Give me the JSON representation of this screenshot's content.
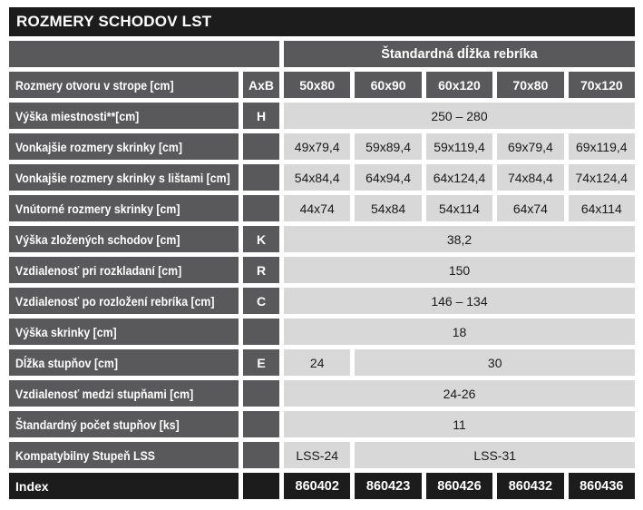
{
  "title": "ROZMERY SCHODOV LST",
  "colors": {
    "dark": "#1c1c1c",
    "gray": "#59595b",
    "light": "#d8d8d8"
  },
  "table": {
    "header": "Štandardná dĺžka rebríka",
    "size_header": {
      "label": "Rozmery otvoru v strope [cm]",
      "code": "AxB",
      "sizes": [
        "50x80",
        "60x90",
        "60x120",
        "70x80",
        "70x120"
      ]
    },
    "rows": [
      {
        "label": "Výška miestnosti**[cm]",
        "code": "H",
        "cells": [
          {
            "text": "250 – 280",
            "span": 5
          }
        ]
      },
      {
        "label": "Vonkajšie rozmery skrinky [cm]",
        "code": "",
        "cells": [
          {
            "text": "49x79,4",
            "span": 1
          },
          {
            "text": "59x89,4",
            "span": 1
          },
          {
            "text": "59x119,4",
            "span": 1
          },
          {
            "text": "69x79,4",
            "span": 1
          },
          {
            "text": "69x119,4",
            "span": 1
          }
        ]
      },
      {
        "label": "Vonkajšie rozmery skrinky s lištami [cm]",
        "code": "",
        "cells": [
          {
            "text": "54x84,4",
            "span": 1
          },
          {
            "text": "64x94,4",
            "span": 1
          },
          {
            "text": "64x124,4",
            "span": 1
          },
          {
            "text": "74x84,4",
            "span": 1
          },
          {
            "text": "74x124,4",
            "span": 1
          }
        ]
      },
      {
        "label": "Vnútorné rozmery skrinky [cm]",
        "code": "",
        "cells": [
          {
            "text": "44x74",
            "span": 1
          },
          {
            "text": "54x84",
            "span": 1
          },
          {
            "text": "54x114",
            "span": 1
          },
          {
            "text": "64x74",
            "span": 1
          },
          {
            "text": "64x114",
            "span": 1
          }
        ]
      },
      {
        "label": "Výška zložených schodov [cm]",
        "code": "K",
        "cells": [
          {
            "text": "38,2",
            "span": 5
          }
        ]
      },
      {
        "label": "Vzdialenosť pri rozkladaní [cm]",
        "code": "R",
        "cells": [
          {
            "text": "150",
            "span": 5
          }
        ]
      },
      {
        "label": "Vzdialenosť po rozložení rebríka [cm]",
        "code": "C",
        "cells": [
          {
            "text": "146 – 134",
            "span": 5
          }
        ]
      },
      {
        "label": "Výška skrinky [cm]",
        "code": "",
        "cells": [
          {
            "text": "18",
            "span": 5
          }
        ]
      },
      {
        "label": "Dĺžka stupňov [cm]",
        "code": "E",
        "cells": [
          {
            "text": "24",
            "span": 1
          },
          {
            "text": "30",
            "span": 4
          }
        ]
      },
      {
        "label": "Vzdialenosť medzi stupňami [cm]",
        "code": "",
        "cells": [
          {
            "text": "24-26",
            "span": 5
          }
        ]
      },
      {
        "label": "Štandardný počet stupňov [ks]",
        "code": "",
        "cells": [
          {
            "text": "11",
            "span": 5
          }
        ]
      },
      {
        "label": "Kompatybilny Stupeň LSS",
        "code": "",
        "cells": [
          {
            "text": "LSS-24",
            "span": 1
          },
          {
            "text": "LSS-31",
            "span": 4
          }
        ]
      }
    ],
    "index_row": {
      "label": "Index",
      "values": [
        "860402",
        "860423",
        "860426",
        "860432",
        "860436"
      ]
    }
  }
}
